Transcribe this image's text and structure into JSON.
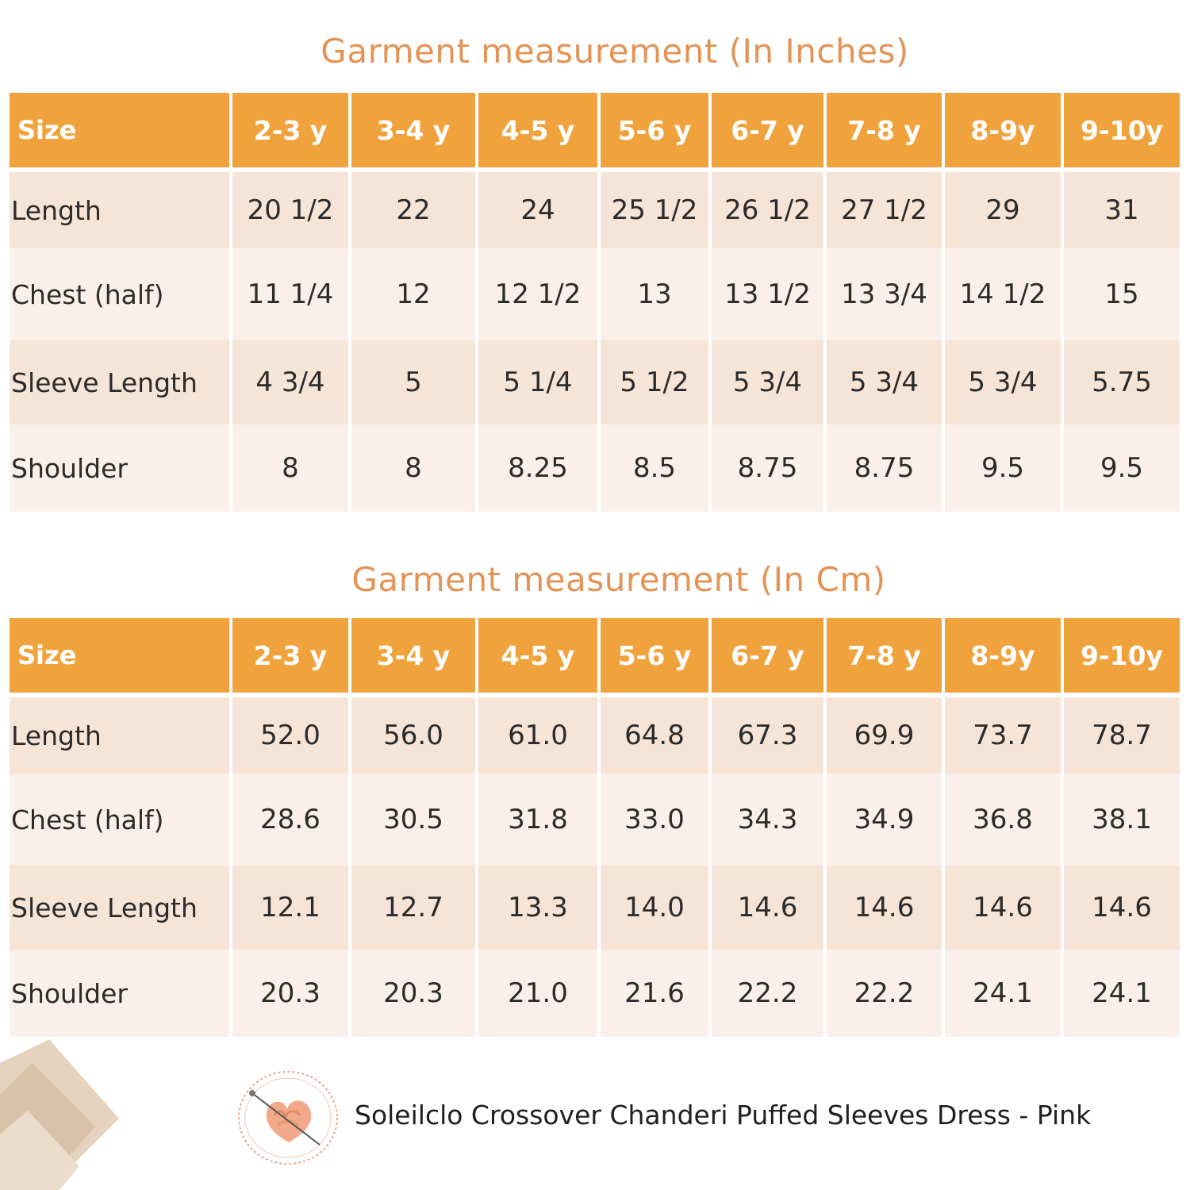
{
  "title_inches": "Garment measurement (In Inches)",
  "title_cm": "Garment measurement (In Cm)",
  "size_label": "Size",
  "sizes": [
    "2-3 y",
    "3-4 y",
    "4-5 y",
    "5-6 y",
    "6-7 y",
    "7-8 y",
    "8-9y",
    "9-10y"
  ],
  "inches": {
    "rows": [
      {
        "label": "Length",
        "values": [
          "20 1/2",
          "22",
          "24",
          "25 1/2",
          "26 1/2",
          "27 1/2",
          "29",
          "31"
        ]
      },
      {
        "label": "Chest (half)",
        "values": [
          "11 1/4",
          "12",
          "12 1/2",
          "13",
          "13 1/2",
          "13 3/4",
          "14 1/2",
          "15"
        ]
      },
      {
        "label": "Sleeve Length",
        "values": [
          "4 3/4",
          "5",
          "5 1/4",
          "5 1/2",
          "5 3/4",
          "5 3/4",
          "5 3/4",
          "5.75"
        ]
      },
      {
        "label": "Shoulder",
        "values": [
          "8",
          "8",
          "8.25",
          "8.5",
          "8.75",
          "8.75",
          "9.5",
          "9.5"
        ]
      }
    ]
  },
  "cm": {
    "rows": [
      {
        "label": "Length",
        "values": [
          "52.0",
          "56.0",
          "61.0",
          "64.8",
          "67.3",
          "69.9",
          "73.7",
          "78.7"
        ]
      },
      {
        "label": "Chest (half)",
        "values": [
          "28.6",
          "30.5",
          "31.8",
          "33.0",
          "34.3",
          "34.9",
          "36.8",
          "38.1"
        ]
      },
      {
        "label": "Sleeve Length",
        "values": [
          "12.1",
          "12.7",
          "13.3",
          "14.0",
          "14.6",
          "14.6",
          "14.6",
          "14.6"
        ]
      },
      {
        "label": "Shoulder",
        "values": [
          "20.3",
          "20.3",
          "21.0",
          "21.6",
          "22.2",
          "22.2",
          "24.1",
          "24.1"
        ]
      }
    ]
  },
  "product_name": "Soleilclo Crossover Chanderi Puffed Sleeves Dress - Pink",
  "colors": {
    "header_orange": "#f0a33c",
    "title_orange": "#e39356",
    "row_dark": "#f6e4d7",
    "row_light": "#fbf0e9"
  },
  "icons": {
    "logo": "pink-knot-logo-icon",
    "decoration": "beige-diamond-pattern"
  }
}
